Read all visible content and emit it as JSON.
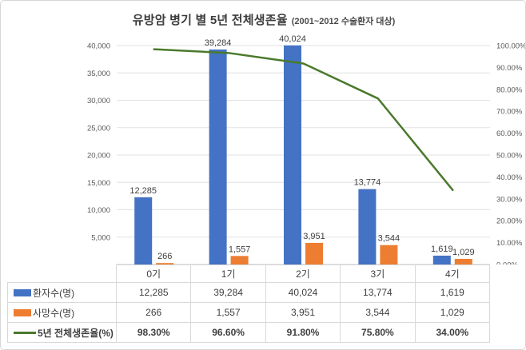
{
  "colors": {
    "patients_bar": "#4472C4",
    "deaths_bar": "#ED7D31",
    "survival_line": "#4A7A2C",
    "gridline": "#E2E2E2",
    "axis_line": "#BFBFBF",
    "axis_text": "#595959",
    "data_label_text": "#3F3F3F",
    "table_border": "#D9D9D9"
  },
  "chart_data": {
    "type": "combo-bar-line",
    "title": "유방암 병기 별 5년 전체생존율",
    "subtitle": "(2001~2012 수술환자 대상)",
    "categories": [
      "0기",
      "1기",
      "2기",
      "3기",
      "4기"
    ],
    "series": [
      {
        "key": "patients",
        "name": "환자수(명)",
        "type": "bar",
        "axis": "left",
        "color_key": "patients_bar",
        "values": [
          12285,
          39284,
          40024,
          13774,
          1619
        ],
        "labels": [
          "12,285",
          "39,284",
          "40,024",
          "13,774",
          "1,619"
        ]
      },
      {
        "key": "deaths",
        "name": "사망수(명)",
        "type": "bar",
        "axis": "left",
        "color_key": "deaths_bar",
        "values": [
          266,
          1557,
          3951,
          3544,
          1029
        ],
        "labels": [
          "266",
          "1,557",
          "3,951",
          "3,544",
          "1,029"
        ]
      },
      {
        "key": "survival",
        "name": "5년 전체생존율(%)",
        "type": "line",
        "axis": "right",
        "color_key": "survival_line",
        "values": [
          98.3,
          96.6,
          91.8,
          75.8,
          34.0
        ],
        "labels": [
          "98.30%",
          "96.60%",
          "91.80%",
          "75.80%",
          "34.00%"
        ]
      }
    ],
    "left_axis": {
      "min": 0,
      "max": 40000,
      "tick_values": [
        40000,
        35000,
        30000,
        25000,
        20000,
        15000,
        10000,
        5000,
        0
      ],
      "tick_labels": [
        "40,000",
        "35,000",
        "30,000",
        "25,000",
        "20,000",
        "15,000",
        "10,000",
        "5,000",
        "-"
      ]
    },
    "right_axis": {
      "min": 0,
      "max": 100,
      "tick_values": [
        100,
        90,
        80,
        70,
        60,
        50,
        40,
        30,
        20,
        10,
        0
      ],
      "tick_labels": [
        "100.00%",
        "90.00%",
        "80.00%",
        "70.00%",
        "60.00%",
        "50.00%",
        "40.00%",
        "30.00%",
        "20.00%",
        "10.00%",
        "0.00%"
      ]
    },
    "grid": true,
    "legend_position": "bottom-table"
  }
}
